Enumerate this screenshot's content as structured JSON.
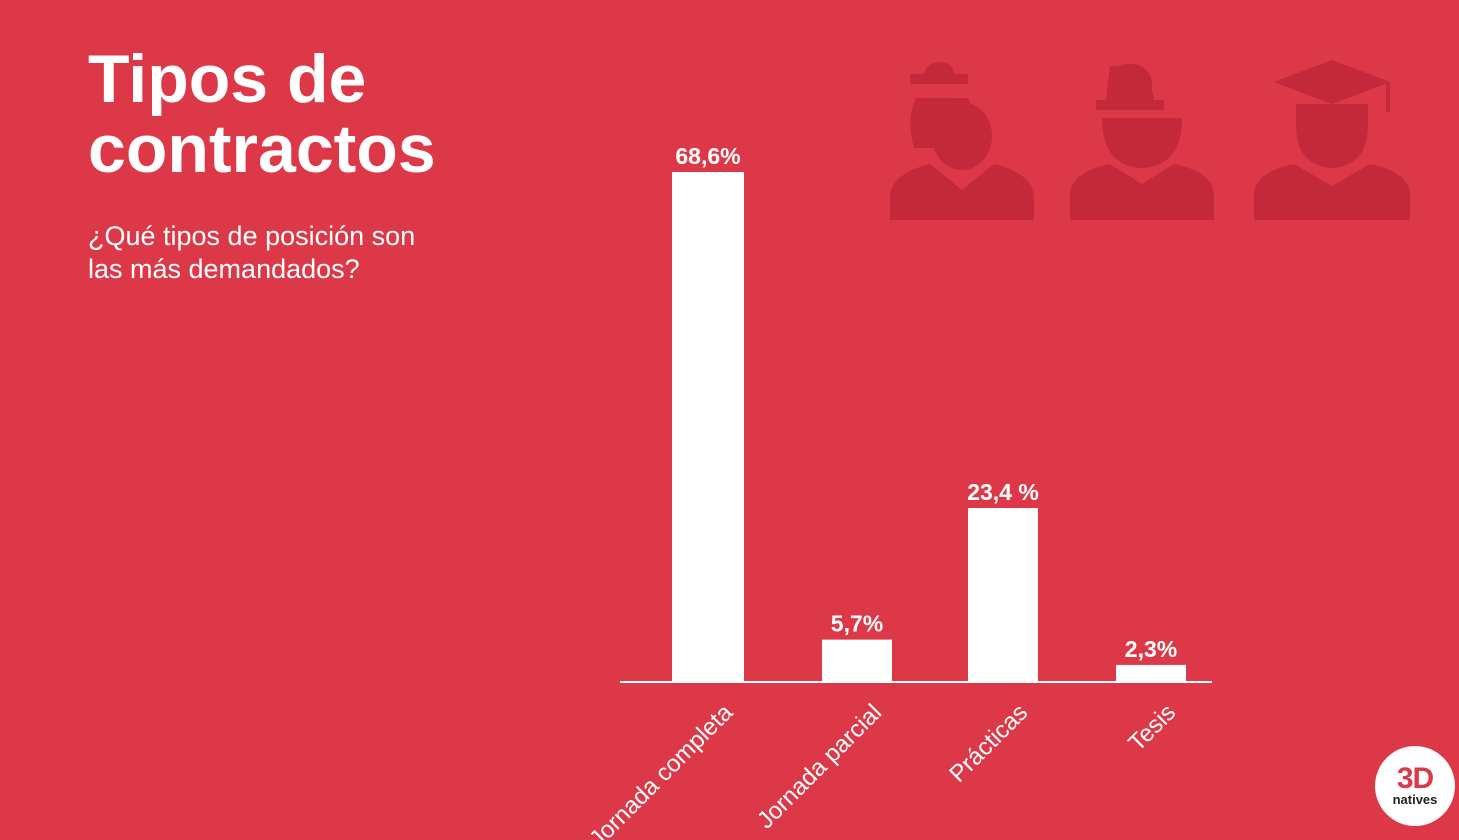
{
  "title_line1": "Tipos de",
  "title_line2": "contractos",
  "subtitle": "¿Qué tipos de posición son las más demandados?",
  "colors": {
    "background": "#dc3848",
    "bar": "#ffffff",
    "icon": "#c3283b",
    "text": "#ffffff"
  },
  "icons": [
    "woman-worker-icon",
    "construction-worker-icon",
    "graduate-icon"
  ],
  "logo": {
    "main": "3D",
    "sub": "natives"
  },
  "chart_data": {
    "type": "bar",
    "title": "",
    "xlabel": "",
    "ylabel": "",
    "categories": [
      "Jornada completa",
      "Jornada parcial",
      "Prácticas",
      "Tesis"
    ],
    "values": [
      68.6,
      5.7,
      23.4,
      2.3
    ],
    "value_labels": [
      "68,6%",
      "5,7%",
      "23,4 %",
      "2,3%"
    ],
    "ylim": [
      0,
      70
    ],
    "grid": false,
    "legend": "none"
  }
}
